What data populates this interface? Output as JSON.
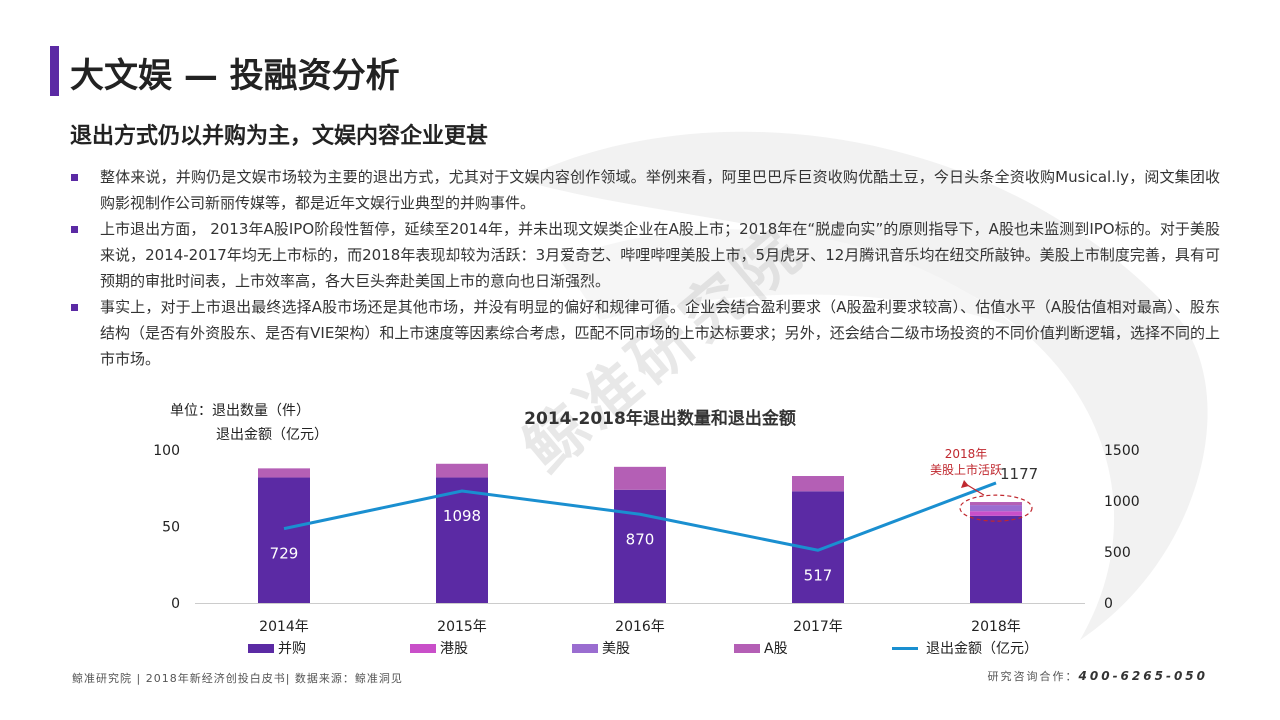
{
  "page": {
    "title": "大文娱 — 投融资分析",
    "subtitle": "退出方式仍以并购为主，文娱内容企业更甚",
    "bullets": [
      "整体来说，并购仍是文娱市场较为主要的退出方式，尤其对于文娱内容创作领域。举例来看，阿里巴巴斥巨资收购优酷土豆，今日头条全资收购Musical.ly，阅文集团收购影视制作公司新丽传媒等，都是近年文娱行业典型的并购事件。",
      "上市退出方面， 2013年A股IPO阶段性暂停，延续至2014年，并未出现文娱类企业在A股上市；2018年在“脱虚向实”的原则指导下，A股也未监测到IPO标的。对于美股来说，2014-2017年均无上市标的，而2018年表现却较为活跃：3月爱奇艺、哔哩哔哩美股上市，5月虎牙、12月腾讯音乐均在纽交所敲钟。美股上市制度完善，具有可预期的审批时间表，上市效率高，各大巨头奔赴美国上市的意向也日渐强烈。",
      "事实上，对于上市退出最终选择A股市场还是其他市场，并没有明显的偏好和规律可循。企业会结合盈利要求（A股盈利要求较高）、估值水平（A股估值相对最高）、股东结构（是否有外资股东、是否有VIE架构）和上市速度等因素综合考虑，匹配不同市场的上市达标要求；另外，还会结合二级市场投资的不同价值判断逻辑，选择不同的上市市场。"
    ],
    "watermark": "鲸准研究院",
    "footer_left": "鲸准研究院 | 2018年新经济创投白皮书| 数据来源：鲸准洞见",
    "footer_contact_label": "研究咨询合作：",
    "footer_contact_phone": "400-6265-050"
  },
  "chart_data": {
    "type": "bar",
    "title": "2014-2018年退出数量和退出金额",
    "unit_label_1": "单位：退出数量（件）",
    "unit_label_2": "退出金额（亿元）",
    "categories": [
      "2014年",
      "2015年",
      "2016年",
      "2017年",
      "2018年"
    ],
    "stacked": true,
    "ylim_left": [
      0,
      100
    ],
    "yticks_left": [
      "0",
      "50",
      "100"
    ],
    "ylim_right": [
      0,
      1500
    ],
    "yticks_right": [
      "0",
      "500",
      "1000",
      "1500"
    ],
    "series": [
      {
        "name": "并购",
        "axis": "left",
        "color": "#5b2aa4",
        "values": [
          82,
          82,
          74,
          73,
          57
        ]
      },
      {
        "name": "港股",
        "axis": "left",
        "color": "#c94fc9",
        "values": [
          0,
          0,
          0,
          0,
          3
        ]
      },
      {
        "name": "美股",
        "axis": "left",
        "color": "#9a6dd0",
        "values": [
          0,
          0,
          0,
          0,
          4
        ]
      },
      {
        "name": "A股",
        "axis": "left",
        "color": "#b45fb5",
        "values": [
          6,
          9,
          15,
          10,
          2
        ]
      }
    ],
    "line_series": {
      "name": "退出金额（亿元）",
      "axis": "right",
      "color": "#1a8fd0",
      "values": [
        729,
        1098,
        870,
        517,
        1177
      ],
      "labels": [
        "729",
        "1098",
        "870",
        "517",
        "1177"
      ]
    },
    "annotation": {
      "text_line1": "2018年",
      "text_line2": "美股上市活跃",
      "color": "#c0282f"
    },
    "grid": false,
    "legend_placement": "bottom"
  }
}
